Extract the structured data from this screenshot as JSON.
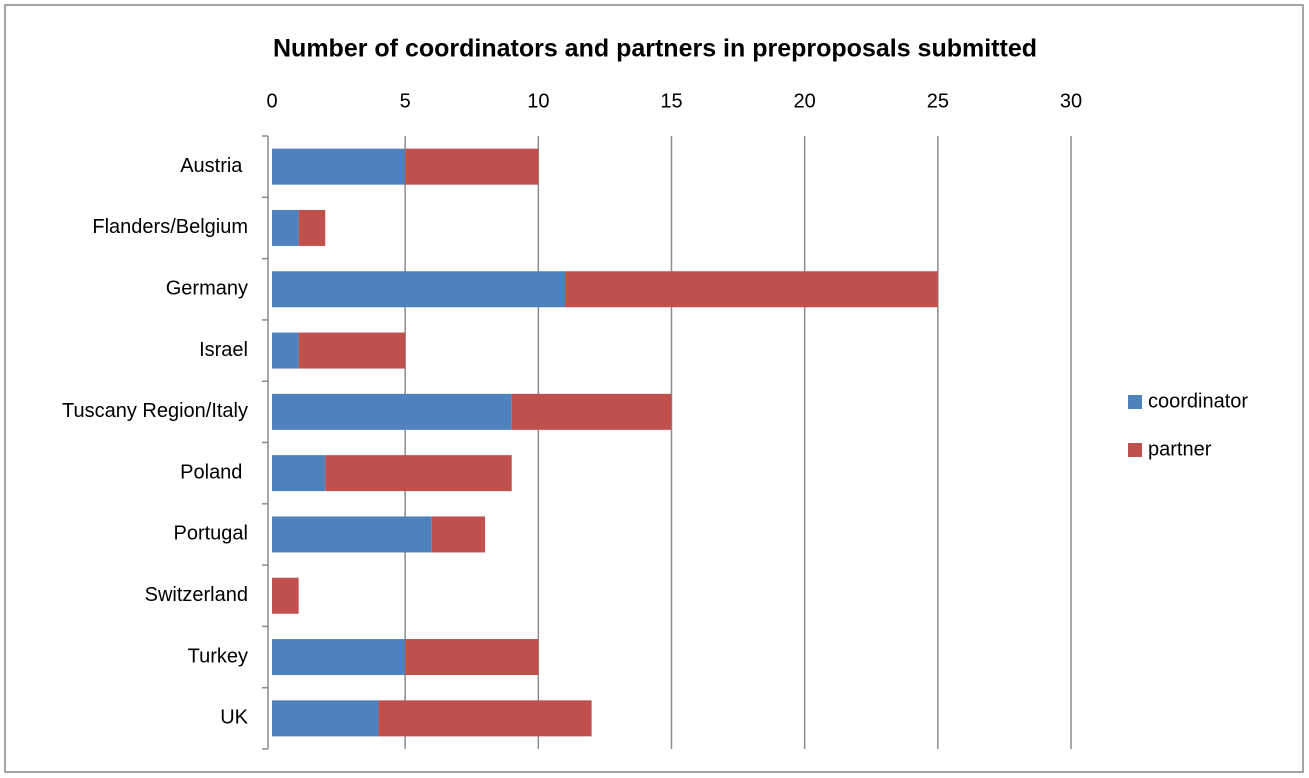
{
  "chart_data": {
    "type": "bar",
    "orientation": "horizontal",
    "stacked": true,
    "title": "Number of coordinators and partners in preproposals submitted",
    "categories": [
      "Austria ",
      "Flanders/Belgium",
      "Germany",
      "Israel",
      "Tuscany Region/Italy",
      "Poland ",
      "Portugal",
      "Switzerland",
      "Turkey",
      "UK"
    ],
    "series": [
      {
        "name": "coordinator",
        "color": "#4f81bd",
        "values": [
          5,
          1,
          11,
          1,
          9,
          2,
          6,
          0,
          5,
          4
        ]
      },
      {
        "name": "partner",
        "color": "#c0504d",
        "values": [
          5,
          1,
          14,
          4,
          6,
          7,
          2,
          1,
          5,
          8
        ]
      }
    ],
    "xlim": [
      0,
      30
    ],
    "xticks": [
      0,
      5,
      10,
      15,
      20,
      25,
      30
    ],
    "grid": true,
    "legend": "right"
  }
}
